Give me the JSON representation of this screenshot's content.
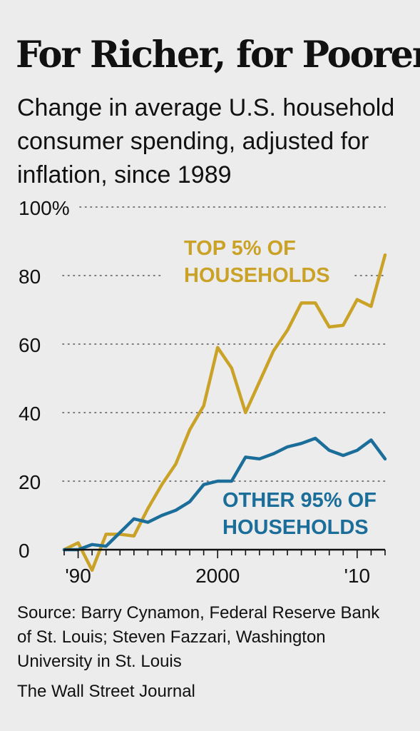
{
  "title": "For Richer, for Poorer",
  "subtitle": "Change in average U.S. household consumer spending, adjusted for inflation, since 1989",
  "source": "Source: Barry Cynamon, Federal Reserve Bank of St. Louis; Steven Fazzari, Washington University in St. Louis",
  "credit": "The Wall Street Journal",
  "colors": {
    "top5": "#c9a227",
    "other95": "#1b6e99",
    "grid": "#555555"
  },
  "chart_data": {
    "type": "line",
    "xlim": [
      1989,
      2012
    ],
    "ylim": [
      0,
      100
    ],
    "yticks": [
      {
        "value": 0,
        "label": "0"
      },
      {
        "value": 20,
        "label": "20"
      },
      {
        "value": 40,
        "label": "40"
      },
      {
        "value": 60,
        "label": "60"
      },
      {
        "value": 80,
        "label": "80"
      },
      {
        "value": 100,
        "label": "100%"
      }
    ],
    "xticks": [
      {
        "value": 1990,
        "label": "'90"
      },
      {
        "value": 2000,
        "label": "2000"
      },
      {
        "value": 2010,
        "label": "'10"
      }
    ],
    "grid": true,
    "x": [
      1989,
      1990,
      1991,
      1992,
      1993,
      1994,
      1995,
      1996,
      1997,
      1998,
      1999,
      2000,
      2001,
      2002,
      2003,
      2004,
      2005,
      2006,
      2007,
      2008,
      2009,
      2010,
      2011,
      2012
    ],
    "series": [
      {
        "name": "TOP 5% OF HOUSEHOLDS",
        "color": "#c9a227",
        "values": [
          0,
          2,
          -6,
          4.5,
          4.5,
          4,
          12,
          19,
          25,
          35,
          42,
          59,
          53,
          40,
          49,
          58,
          64,
          72,
          72,
          65,
          65.5,
          73,
          71,
          86
        ]
      },
      {
        "name": "OTHER 95% OF HOUSEHOLDS",
        "color": "#1b6e99",
        "values": [
          0,
          0,
          1.5,
          1,
          5,
          9,
          8,
          10,
          11.5,
          14,
          19,
          20,
          20,
          27,
          26.5,
          28,
          30,
          31,
          32.5,
          29,
          27.5,
          29,
          32,
          26.5
        ]
      }
    ]
  }
}
